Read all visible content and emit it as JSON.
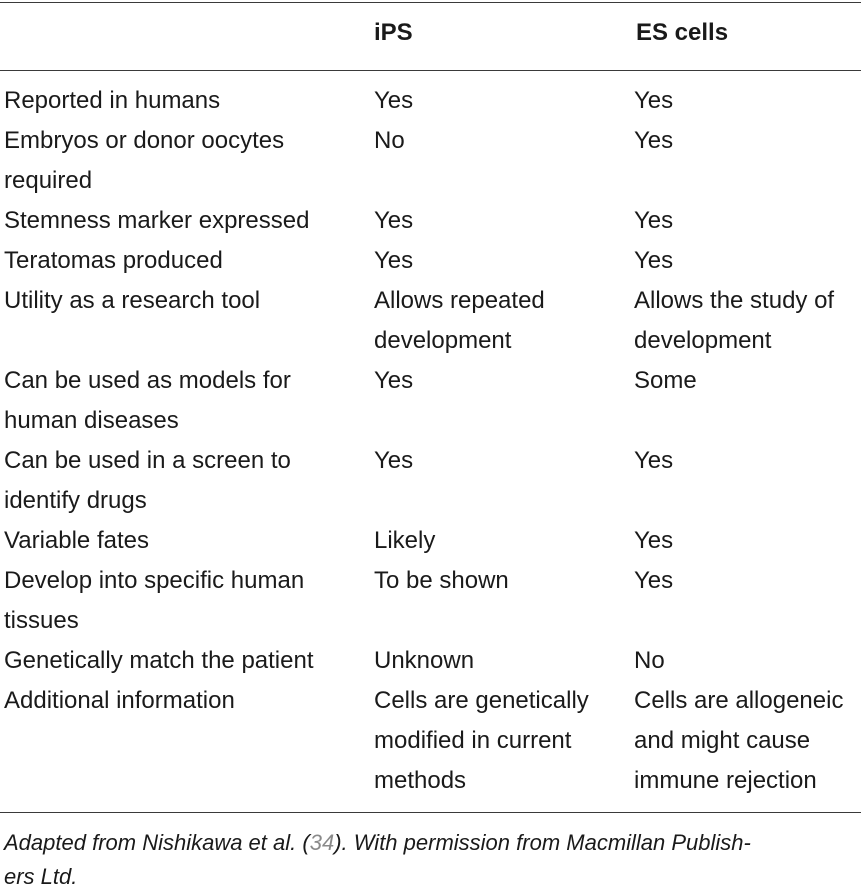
{
  "table": {
    "headers": [
      "",
      "iPS",
      "ES cells"
    ],
    "rows": [
      {
        "feature": [
          "Reported in humans"
        ],
        "ips": [
          "Yes"
        ],
        "es": [
          "Yes"
        ]
      },
      {
        "feature": [
          "Embryos or donor oocytes",
          "required"
        ],
        "ips": [
          "No"
        ],
        "es": [
          "Yes"
        ]
      },
      {
        "feature": [
          "Stemness marker expressed"
        ],
        "ips": [
          "Yes"
        ],
        "es": [
          "Yes"
        ]
      },
      {
        "feature": [
          "Teratomas produced"
        ],
        "ips": [
          "Yes"
        ],
        "es": [
          "Yes"
        ]
      },
      {
        "feature": [
          "Utility as a research tool"
        ],
        "ips": [
          "Allows repeated",
          "development"
        ],
        "es": [
          "Allows the study of",
          "development"
        ]
      },
      {
        "feature": [
          "Can be used as models for",
          "human diseases"
        ],
        "ips": [
          "Yes"
        ],
        "es": [
          "Some"
        ]
      },
      {
        "feature": [
          "Can be used in a screen to",
          "identify drugs"
        ],
        "ips": [
          "Yes"
        ],
        "es": [
          "Yes"
        ]
      },
      {
        "feature": [
          "Variable fates"
        ],
        "ips": [
          "Likely"
        ],
        "es": [
          "Yes"
        ]
      },
      {
        "feature": [
          "Develop into specific human",
          "tissues"
        ],
        "ips": [
          "To be shown"
        ],
        "es": [
          "Yes"
        ]
      },
      {
        "feature": [
          "Genetically match the patient"
        ],
        "ips": [
          "Unknown"
        ],
        "es": [
          "No"
        ]
      },
      {
        "feature": [
          "Additional information"
        ],
        "ips": [
          "Cells are genetically",
          "modified in current",
          "methods"
        ],
        "es": [
          "Cells are allogeneic",
          "and might cause",
          "immune rejection"
        ]
      }
    ]
  },
  "footnote": {
    "before": "Adapted from Nishikawa et al. (",
    "ref": "34",
    "after_line1": "). With permission from Macmillan Publish-",
    "line2": "ers Ltd."
  }
}
